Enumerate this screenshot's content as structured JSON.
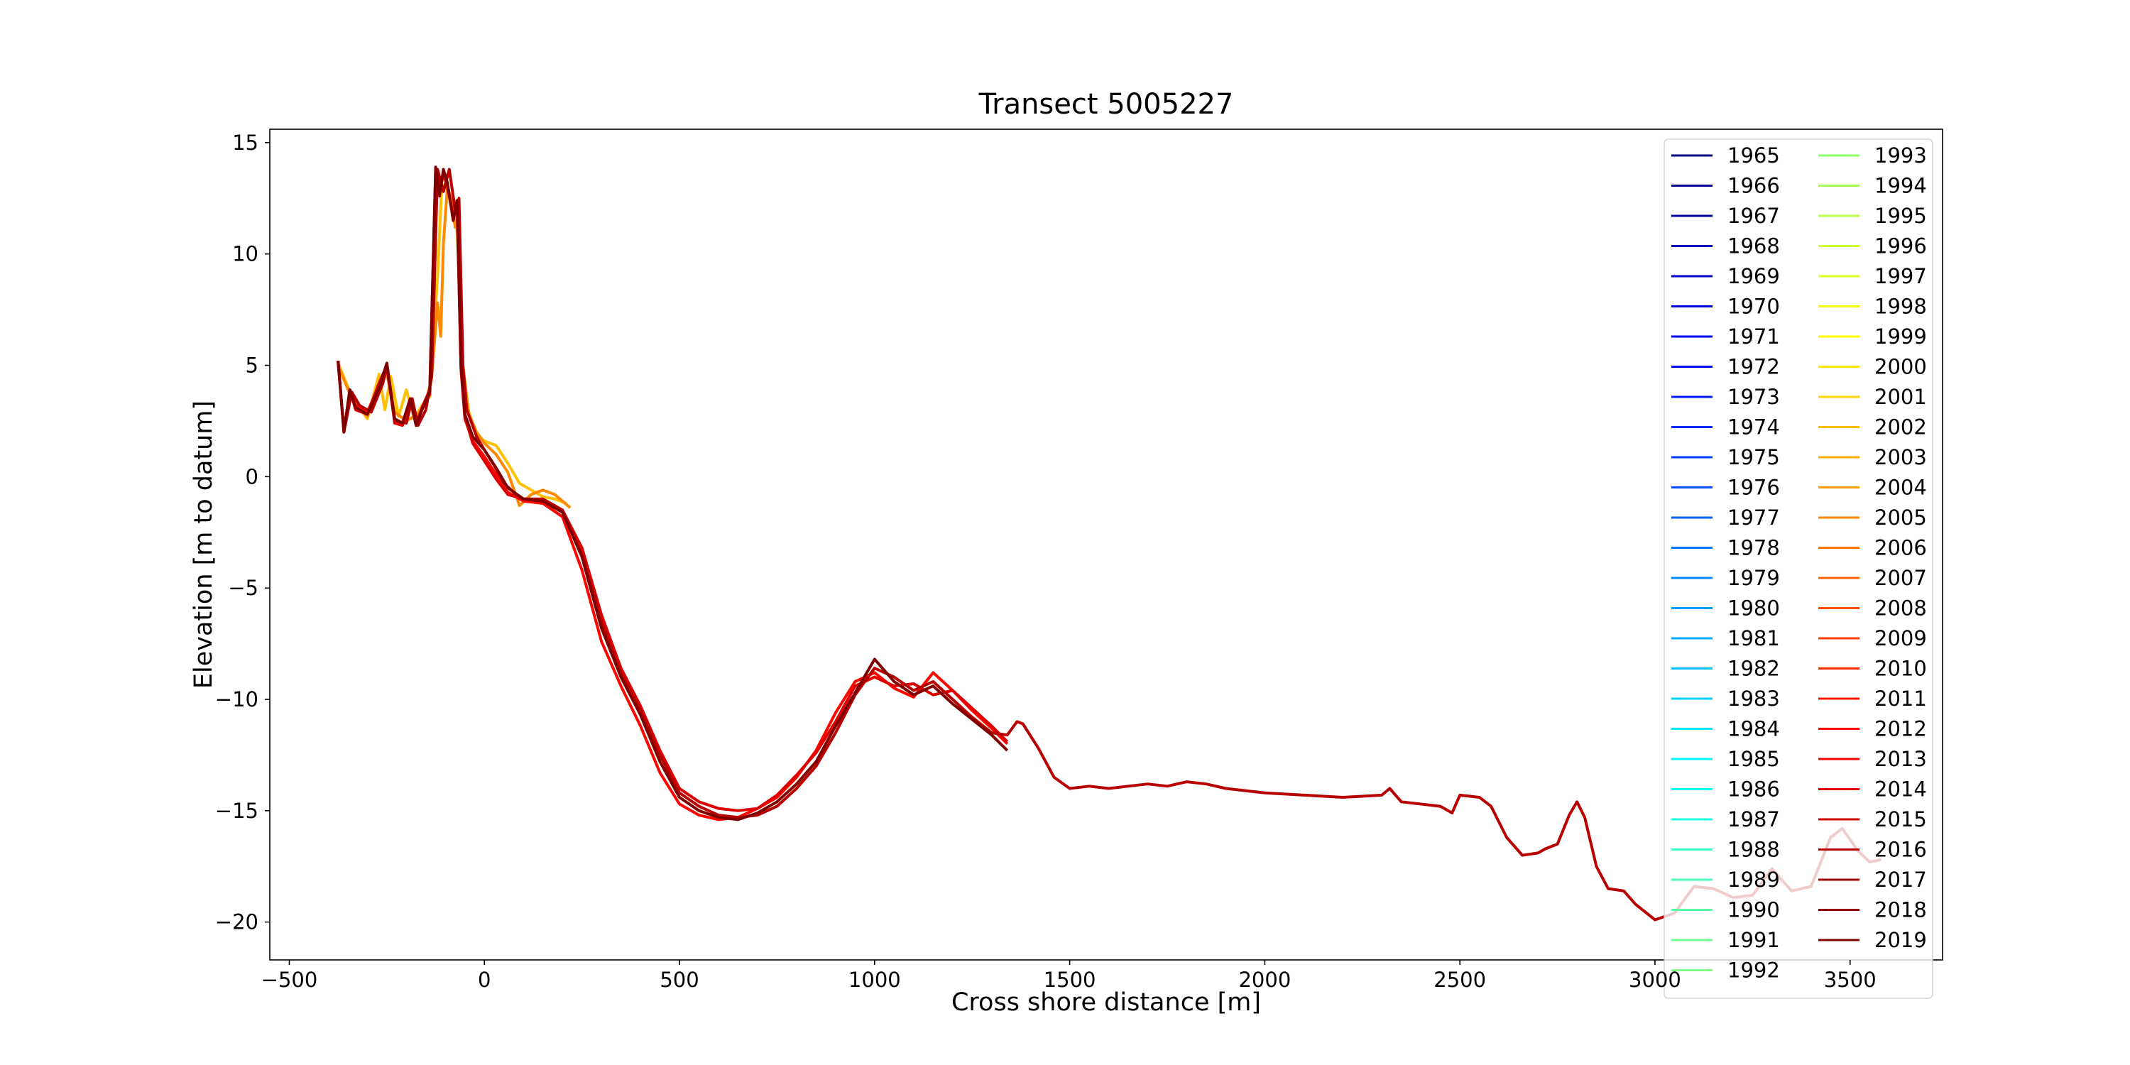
{
  "chart_data": {
    "type": "line",
    "title": "Transect 5005227",
    "x_label": "Cross shore distance [m]",
    "y_label": "Elevation [m to datum]",
    "xlim": [
      -550,
      3737
    ],
    "ylim": [
      -21.7,
      15.6
    ],
    "xticks": [
      {
        "value": -500,
        "label": "−500"
      },
      0,
      500,
      1000,
      1500,
      2000,
      2500,
      3000,
      3500
    ],
    "yticks": [
      {
        "value": -20,
        "label": "−20"
      },
      {
        "value": -15,
        "label": "−15"
      },
      {
        "value": -10,
        "label": "−10"
      },
      {
        "value": -5,
        "label": "−5"
      },
      0,
      5,
      10,
      15
    ],
    "grid": false,
    "legend": "upper right",
    "legend_columns": 2,
    "series": [
      {
        "name": "1965",
        "color": "#000080",
        "x": [],
        "values": []
      },
      {
        "name": "1966",
        "color": "#000092",
        "x": [],
        "values": []
      },
      {
        "name": "1967",
        "color": "#0000a5",
        "x": [],
        "values": []
      },
      {
        "name": "1968",
        "color": "#0000b8",
        "x": [],
        "values": []
      },
      {
        "name": "1969",
        "color": "#0000cb",
        "x": [],
        "values": []
      },
      {
        "name": "1970",
        "color": "#0000de",
        "x": [],
        "values": []
      },
      {
        "name": "1971",
        "color": "#0000f1",
        "x": [],
        "values": []
      },
      {
        "name": "1972",
        "color": "#0005ff",
        "x": [],
        "values": []
      },
      {
        "name": "1973",
        "color": "#0018ff",
        "x": [],
        "values": []
      },
      {
        "name": "1974",
        "color": "#002aff",
        "x": [],
        "values": []
      },
      {
        "name": "1975",
        "color": "#003dff",
        "x": [],
        "values": []
      },
      {
        "name": "1976",
        "color": "#0050ff",
        "x": [],
        "values": []
      },
      {
        "name": "1977",
        "color": "#0063ff",
        "x": [],
        "values": []
      },
      {
        "name": "1978",
        "color": "#0076ff",
        "x": [],
        "values": []
      },
      {
        "name": "1979",
        "color": "#0089ff",
        "x": [],
        "values": []
      },
      {
        "name": "1980",
        "color": "#009cff",
        "x": [],
        "values": []
      },
      {
        "name": "1981",
        "color": "#00aeff",
        "x": [],
        "values": []
      },
      {
        "name": "1982",
        "color": "#00c1ff",
        "x": [],
        "values": []
      },
      {
        "name": "1983",
        "color": "#00d4ff",
        "x": [],
        "values": []
      },
      {
        "name": "1984",
        "color": "#00e7ff",
        "x": [],
        "values": []
      },
      {
        "name": "1985",
        "color": "#00faff",
        "x": [],
        "values": []
      },
      {
        "name": "1986",
        "color": "#0efff1",
        "x": [],
        "values": []
      },
      {
        "name": "1987",
        "color": "#21ffde",
        "x": [],
        "values": []
      },
      {
        "name": "1988",
        "color": "#34ffcb",
        "x": [],
        "values": []
      },
      {
        "name": "1989",
        "color": "#47ffb8",
        "x": [],
        "values": []
      },
      {
        "name": "1990",
        "color": "#5affa5",
        "x": [],
        "values": []
      },
      {
        "name": "1991",
        "color": "#6dff92",
        "x": [],
        "values": []
      },
      {
        "name": "1992",
        "color": "#80ff80",
        "x": [],
        "values": []
      },
      {
        "name": "1993",
        "color": "#92ff6d",
        "x": [],
        "values": []
      },
      {
        "name": "1994",
        "color": "#a5ff5a",
        "x": [],
        "values": []
      },
      {
        "name": "1995",
        "color": "#b8ff47",
        "x": [],
        "values": []
      },
      {
        "name": "1996",
        "color": "#cbff34",
        "x": [],
        "values": []
      },
      {
        "name": "1997",
        "color": "#deff21",
        "x": [],
        "values": []
      },
      {
        "name": "1998",
        "color": "#f1ff0e",
        "x": [],
        "values": []
      },
      {
        "name": "1999",
        "color": "#fffa00",
        "x": [],
        "values": []
      },
      {
        "name": "2000",
        "color": "#ffe700",
        "x": [],
        "values": []
      },
      {
        "name": "2001",
        "color": "#ffd400",
        "x": [],
        "values": []
      },
      {
        "name": "2002",
        "color": "#ffc100",
        "x": [
          -375,
          -340,
          -300,
          -270,
          -255,
          -240,
          -220,
          -200,
          -180,
          -160,
          -140,
          -120,
          -110,
          -100,
          -85,
          -70,
          -55,
          -40,
          -20,
          0,
          30,
          60,
          90,
          120,
          150,
          180,
          210
        ],
        "values": [
          5.1,
          3.6,
          2.6,
          4.6,
          3.0,
          4.5,
          2.7,
          3.9,
          2.6,
          3.2,
          3.6,
          9,
          12.8,
          13.2,
          12.5,
          11,
          4.8,
          2.9,
          1.9,
          1.6,
          1.4,
          0.6,
          -0.3,
          -0.6,
          -0.9,
          -1.0,
          -1.2
        ]
      },
      {
        "name": "2003",
        "color": "#ffae00",
        "x": [],
        "values": []
      },
      {
        "name": "2004",
        "color": "#ff9c00",
        "x": [],
        "values": []
      },
      {
        "name": "2005",
        "color": "#ff8900",
        "x": [
          -375,
          -340,
          -300,
          -270,
          -250,
          -230,
          -200,
          -170,
          -150,
          -135,
          -120,
          -112,
          -105,
          -95,
          -85,
          -75,
          -65,
          -55,
          -40,
          -20,
          0,
          30,
          60,
          90,
          120,
          150,
          180,
          220
        ],
        "values": [
          5.0,
          3.5,
          2.7,
          4.2,
          4.6,
          2.9,
          2.5,
          2.8,
          3.3,
          4.5,
          7.8,
          6.3,
          10.5,
          13.0,
          12.5,
          11.2,
          11.8,
          5.0,
          2.8,
          2.0,
          1.5,
          1.0,
          0.2,
          -1.3,
          -0.8,
          -0.6,
          -0.8,
          -1.4
        ]
      },
      {
        "name": "2006",
        "color": "#ff7600",
        "x": [],
        "values": []
      },
      {
        "name": "2007",
        "color": "#ff6300",
        "x": [],
        "values": []
      },
      {
        "name": "2008",
        "color": "#ff5000",
        "x": [],
        "values": []
      },
      {
        "name": "2009",
        "color": "#ff3d00",
        "x": [],
        "values": []
      },
      {
        "name": "2010",
        "color": "#ff2a00",
        "x": [],
        "values": []
      },
      {
        "name": "2011",
        "color": "#ff1800",
        "x": [],
        "values": []
      },
      {
        "name": "2012",
        "color": "#ff0500",
        "x": [
          -375,
          -360,
          -345,
          -330,
          -300,
          -270,
          -250,
          -230,
          -210,
          -190,
          -175,
          -160,
          -140,
          -125,
          -115,
          -105,
          -95,
          -80,
          -70,
          -60,
          -50,
          -30,
          0,
          30,
          60,
          100,
          150,
          200,
          250,
          300,
          350,
          400,
          450,
          500,
          550,
          600,
          650,
          700,
          750,
          800,
          850,
          900,
          950,
          1000,
          1050,
          1100,
          1150,
          1200,
          1250,
          1300,
          1340
        ],
        "values": [
          5.1,
          2.1,
          3.8,
          3.2,
          2.9,
          4.1,
          4.9,
          2.5,
          2.4,
          3.4,
          2.4,
          3.0,
          3.7,
          13.6,
          12.8,
          13.6,
          13.0,
          11.8,
          12.2,
          4.8,
          2.6,
          1.6,
          0.9,
          0.1,
          -0.7,
          -1.1,
          -1.2,
          -1.8,
          -4.2,
          -7.4,
          -9.4,
          -11.2,
          -13.3,
          -14.7,
          -15.2,
          -15.4,
          -15.3,
          -14.9,
          -14.4,
          -13.5,
          -12.3,
          -10.6,
          -9.2,
          -8.8,
          -9.5,
          -9.9,
          -8.8,
          -9.6,
          -10.5,
          -11.3,
          -12.0
        ]
      },
      {
        "name": "2013",
        "color": "#f10000",
        "x": [],
        "values": []
      },
      {
        "name": "2014",
        "color": "#de0000",
        "x": [
          -375,
          -360,
          -345,
          -330,
          -300,
          -270,
          -250,
          -230,
          -210,
          -190,
          -175,
          -160,
          -140,
          -125,
          -115,
          -105,
          -95,
          -80,
          -70,
          -60,
          -50,
          -30,
          0,
          30,
          60,
          100,
          150,
          200,
          250,
          300,
          350,
          400,
          450,
          500,
          550,
          600,
          650,
          700,
          750,
          800,
          850,
          900,
          950,
          1000,
          1050,
          1100,
          1150,
          1200,
          1250,
          1300,
          1340
        ],
        "values": [
          5.2,
          2.0,
          3.9,
          3.0,
          2.8,
          4.2,
          5.0,
          2.4,
          2.3,
          3.5,
          2.3,
          3.1,
          3.9,
          13.8,
          12.9,
          13.7,
          13.1,
          11.6,
          12.3,
          4.9,
          2.7,
          1.5,
          0.7,
          -0.1,
          -0.8,
          -1.0,
          -1.1,
          -1.5,
          -3.2,
          -6.2,
          -8.6,
          -10.3,
          -12.3,
          -14.0,
          -14.6,
          -14.9,
          -15.0,
          -14.9,
          -14.3,
          -13.4,
          -12.4,
          -11.0,
          -9.4,
          -9.0,
          -9.4,
          -9.3,
          -9.8,
          -9.6,
          -10.4,
          -11.2,
          -11.9
        ]
      },
      {
        "name": "2015",
        "color": "#cb0000",
        "x": [],
        "values": []
      },
      {
        "name": "2016",
        "color": "#b80000",
        "x": [
          -375,
          -360,
          -340,
          -320,
          -290,
          -260,
          -250,
          -230,
          -200,
          -185,
          -170,
          -150,
          -135,
          -120,
          -105,
          -90,
          -75,
          -65,
          -55,
          -45,
          -20,
          0,
          25,
          50,
          75,
          100,
          150,
          200,
          250,
          300,
          350,
          400,
          450,
          500,
          550,
          600,
          650,
          700,
          750,
          800,
          850,
          900,
          950,
          1000,
          1050,
          1100,
          1150,
          1200,
          1250,
          1300,
          1340,
          1365,
          1380,
          1420,
          1460,
          1500,
          1550,
          1600,
          1650,
          1700,
          1750,
          1800,
          1850,
          1900,
          1950,
          2000,
          2100,
          2200,
          2300,
          2320,
          2350,
          2450,
          2480,
          2500,
          2550,
          2580,
          2620,
          2660,
          2700,
          2720,
          2750,
          2780,
          2800,
          2820,
          2850,
          2880,
          2920,
          2950,
          3000,
          3050,
          3100,
          3150,
          3200,
          3250,
          3300,
          3350,
          3400,
          3450,
          3480,
          3520,
          3550,
          3580
        ],
        "values": [
          5.2,
          2.0,
          3.8,
          3.2,
          2.9,
          4.2,
          5.0,
          2.5,
          2.4,
          3.5,
          2.3,
          3.0,
          4.5,
          13.8,
          12.8,
          13.8,
          12.0,
          12.5,
          5.0,
          3.0,
          1.8,
          1.2,
          0.5,
          -0.3,
          -0.7,
          -1.0,
          -1.0,
          -1.5,
          -3.5,
          -6.5,
          -8.8,
          -10.5,
          -12.5,
          -14.2,
          -14.8,
          -15.2,
          -15.3,
          -15.2,
          -14.8,
          -14.0,
          -13.0,
          -11.5,
          -9.8,
          -8.6,
          -9.0,
          -9.6,
          -9.2,
          -10.0,
          -10.8,
          -11.5,
          -11.6,
          -11.0,
          -11.1,
          -12.2,
          -13.5,
          -14.0,
          -13.9,
          -14.0,
          -13.9,
          -13.8,
          -13.9,
          -13.7,
          -13.8,
          -14.0,
          -14.1,
          -14.2,
          -14.3,
          -14.4,
          -14.3,
          -14.0,
          -14.6,
          -14.8,
          -15.1,
          -14.3,
          -14.4,
          -14.8,
          -16.2,
          -17.0,
          -16.9,
          -16.7,
          -16.5,
          -15.2,
          -14.6,
          -15.3,
          -17.5,
          -18.5,
          -18.6,
          -19.2,
          -19.9,
          -19.6,
          -18.4,
          -18.5,
          -18.9,
          -18.8,
          -17.6,
          -18.6,
          -18.4,
          -16.2,
          -15.8,
          -16.8,
          -17.3,
          -17.2
        ]
      },
      {
        "name": "2017",
        "color": "#a50000",
        "x": [],
        "values": []
      },
      {
        "name": "2018",
        "color": "#920000",
        "x": [],
        "values": []
      },
      {
        "name": "2019",
        "color": "#800000",
        "x": [
          -375,
          -360,
          -345,
          -330,
          -300,
          -270,
          -250,
          -230,
          -210,
          -190,
          -175,
          -160,
          -140,
          -125,
          -115,
          -105,
          -95,
          -80,
          -70,
          -60,
          -50,
          -30,
          0,
          30,
          60,
          100,
          150,
          200,
          250,
          300,
          350,
          400,
          450,
          500,
          550,
          600,
          650,
          700,
          750,
          800,
          850,
          900,
          950,
          1000,
          1050,
          1100,
          1150,
          1200,
          1250,
          1300,
          1340
        ],
        "values": [
          5.2,
          2.0,
          3.9,
          3.1,
          2.8,
          4.0,
          5.1,
          2.6,
          2.4,
          3.5,
          2.3,
          3.0,
          3.8,
          13.9,
          12.6,
          13.8,
          13.2,
          11.5,
          12.4,
          5.0,
          2.8,
          1.8,
          1.2,
          0.4,
          -0.5,
          -1.0,
          -1.1,
          -1.6,
          -3.6,
          -6.8,
          -9.0,
          -10.7,
          -12.8,
          -14.4,
          -15.0,
          -15.3,
          -15.4,
          -15.1,
          -14.6,
          -13.8,
          -12.8,
          -11.2,
          -9.7,
          -8.2,
          -9.2,
          -9.8,
          -9.4,
          -10.2,
          -10.9,
          -11.6,
          -12.3
        ]
      }
    ]
  }
}
